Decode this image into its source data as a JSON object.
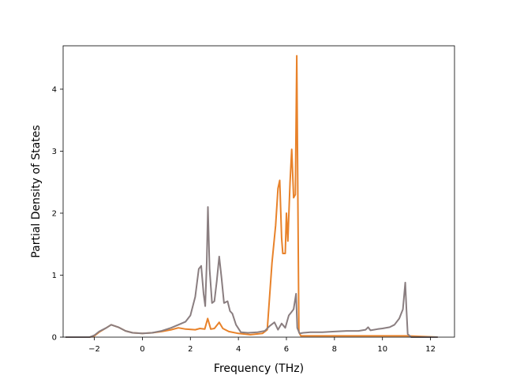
{
  "chart_data": {
    "type": "line",
    "title": "",
    "xlabel": "Frequency (THz)",
    "ylabel": "Partial Density of States",
    "xlim": [
      -3.3,
      13.0
    ],
    "ylim": [
      0,
      4.7
    ],
    "xticks": [
      -2,
      0,
      2,
      4,
      6,
      8,
      10,
      12
    ],
    "yticks": [
      0,
      1,
      2,
      3,
      4
    ],
    "xtick_labels": [
      "−2",
      "0",
      "2",
      "4",
      "6",
      "8",
      "10",
      "12"
    ],
    "ytick_labels": [
      "0",
      "1",
      "2",
      "3",
      "4"
    ],
    "grid": false,
    "legend": "none",
    "series": [
      {
        "color": "#e8822a",
        "points": [
          [
            -3.2,
            0.0
          ],
          [
            -2.2,
            0.0
          ],
          [
            -2.0,
            0.02
          ],
          [
            -1.8,
            0.08
          ],
          [
            -1.5,
            0.15
          ],
          [
            -1.3,
            0.2
          ],
          [
            -1.0,
            0.16
          ],
          [
            -0.7,
            0.1
          ],
          [
            -0.4,
            0.07
          ],
          [
            0.0,
            0.06
          ],
          [
            0.4,
            0.07
          ],
          [
            0.8,
            0.09
          ],
          [
            1.2,
            0.12
          ],
          [
            1.5,
            0.15
          ],
          [
            1.8,
            0.13
          ],
          [
            2.2,
            0.12
          ],
          [
            2.4,
            0.14
          ],
          [
            2.6,
            0.13
          ],
          [
            2.72,
            0.3
          ],
          [
            2.85,
            0.13
          ],
          [
            3.0,
            0.14
          ],
          [
            3.2,
            0.24
          ],
          [
            3.35,
            0.14
          ],
          [
            3.6,
            0.09
          ],
          [
            4.0,
            0.06
          ],
          [
            4.5,
            0.04
          ],
          [
            5.0,
            0.06
          ],
          [
            5.2,
            0.12
          ],
          [
            5.4,
            1.2
          ],
          [
            5.55,
            1.8
          ],
          [
            5.65,
            2.4
          ],
          [
            5.72,
            2.53
          ],
          [
            5.8,
            1.6
          ],
          [
            5.85,
            1.35
          ],
          [
            5.95,
            1.35
          ],
          [
            6.0,
            2.0
          ],
          [
            6.06,
            1.55
          ],
          [
            6.15,
            2.5
          ],
          [
            6.22,
            3.03
          ],
          [
            6.3,
            2.25
          ],
          [
            6.37,
            2.3
          ],
          [
            6.43,
            4.54
          ],
          [
            6.52,
            0.08
          ],
          [
            6.6,
            0.02
          ],
          [
            7.0,
            0.02
          ],
          [
            8.0,
            0.02
          ],
          [
            9.0,
            0.02
          ],
          [
            10.0,
            0.02
          ],
          [
            11.0,
            0.02
          ],
          [
            12.3,
            0.0
          ]
        ]
      },
      {
        "color": "#8a7e80",
        "points": [
          [
            -3.2,
            0.0
          ],
          [
            -2.2,
            0.0
          ],
          [
            -2.0,
            0.03
          ],
          [
            -1.8,
            0.09
          ],
          [
            -1.5,
            0.15
          ],
          [
            -1.3,
            0.2
          ],
          [
            -1.0,
            0.16
          ],
          [
            -0.7,
            0.1
          ],
          [
            -0.4,
            0.07
          ],
          [
            0.0,
            0.06
          ],
          [
            0.4,
            0.07
          ],
          [
            0.8,
            0.1
          ],
          [
            1.2,
            0.15
          ],
          [
            1.5,
            0.2
          ],
          [
            1.8,
            0.25
          ],
          [
            2.0,
            0.35
          ],
          [
            2.2,
            0.65
          ],
          [
            2.35,
            1.1
          ],
          [
            2.45,
            1.15
          ],
          [
            2.55,
            0.7
          ],
          [
            2.62,
            0.5
          ],
          [
            2.68,
            1.2
          ],
          [
            2.73,
            2.1
          ],
          [
            2.8,
            1.1
          ],
          [
            2.9,
            0.55
          ],
          [
            3.0,
            0.58
          ],
          [
            3.1,
            0.9
          ],
          [
            3.2,
            1.3
          ],
          [
            3.3,
            0.95
          ],
          [
            3.4,
            0.55
          ],
          [
            3.55,
            0.58
          ],
          [
            3.65,
            0.42
          ],
          [
            3.75,
            0.38
          ],
          [
            3.9,
            0.2
          ],
          [
            4.1,
            0.08
          ],
          [
            4.4,
            0.07
          ],
          [
            4.8,
            0.08
          ],
          [
            5.1,
            0.1
          ],
          [
            5.3,
            0.18
          ],
          [
            5.5,
            0.24
          ],
          [
            5.65,
            0.12
          ],
          [
            5.8,
            0.22
          ],
          [
            5.95,
            0.15
          ],
          [
            6.1,
            0.35
          ],
          [
            6.2,
            0.4
          ],
          [
            6.3,
            0.45
          ],
          [
            6.4,
            0.7
          ],
          [
            6.45,
            0.15
          ],
          [
            6.55,
            0.06
          ],
          [
            6.7,
            0.07
          ],
          [
            7.0,
            0.08
          ],
          [
            7.5,
            0.08
          ],
          [
            8.0,
            0.09
          ],
          [
            8.5,
            0.1
          ],
          [
            9.0,
            0.1
          ],
          [
            9.3,
            0.12
          ],
          [
            9.4,
            0.16
          ],
          [
            9.5,
            0.11
          ],
          [
            9.8,
            0.13
          ],
          [
            10.0,
            0.14
          ],
          [
            10.3,
            0.16
          ],
          [
            10.5,
            0.2
          ],
          [
            10.7,
            0.3
          ],
          [
            10.85,
            0.45
          ],
          [
            10.95,
            0.88
          ],
          [
            11.0,
            0.45
          ],
          [
            11.05,
            0.05
          ],
          [
            11.2,
            0.0
          ],
          [
            12.3,
            0.0
          ]
        ]
      }
    ]
  }
}
